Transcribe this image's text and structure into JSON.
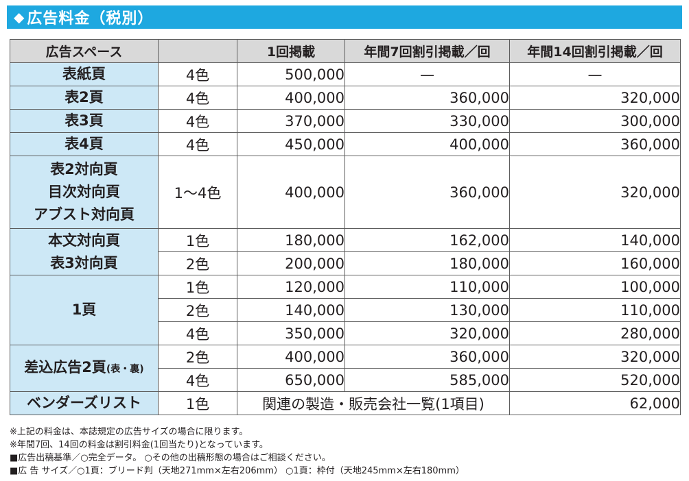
{
  "header": {
    "marker": "◆",
    "title": "広告料金（税別）"
  },
  "table": {
    "headers": [
      "広告スペース",
      "",
      "1回掲載",
      "年間7回割引掲載／回",
      "年間14回割引掲載／回"
    ],
    "groups": [
      {
        "label_lines": [
          "表紙頁"
        ],
        "rows": [
          {
            "color": "4色",
            "once": "500,000",
            "seven": "—",
            "fourteen": "—"
          }
        ]
      },
      {
        "label_lines": [
          "表2頁"
        ],
        "rows": [
          {
            "color": "4色",
            "once": "400,000",
            "seven": "360,000",
            "fourteen": "320,000"
          }
        ]
      },
      {
        "label_lines": [
          "表3頁"
        ],
        "rows": [
          {
            "color": "4色",
            "once": "370,000",
            "seven": "330,000",
            "fourteen": "300,000"
          }
        ]
      },
      {
        "label_lines": [
          "表4頁"
        ],
        "rows": [
          {
            "color": "4色",
            "once": "450,000",
            "seven": "400,000",
            "fourteen": "360,000"
          }
        ]
      },
      {
        "label_lines": [
          "表2対向頁",
          "目次対向頁",
          "アブスト対向頁"
        ],
        "rows": [
          {
            "color": "1〜4色",
            "once": "400,000",
            "seven": "360,000",
            "fourteen": "320,000"
          }
        ]
      },
      {
        "label_lines": [
          "本文対向頁",
          "表3対向頁"
        ],
        "rows": [
          {
            "color": "1色",
            "once": "180,000",
            "seven": "162,000",
            "fourteen": "140,000"
          },
          {
            "color": "2色",
            "once": "200,000",
            "seven": "180,000",
            "fourteen": "160,000"
          }
        ]
      },
      {
        "label_lines": [
          "1頁"
        ],
        "rows": [
          {
            "color": "1色",
            "once": "120,000",
            "seven": "110,000",
            "fourteen": "100,000"
          },
          {
            "color": "2色",
            "once": "140,000",
            "seven": "130,000",
            "fourteen": "110,000"
          },
          {
            "color": "4色",
            "once": "350,000",
            "seven": "320,000",
            "fourteen": "280,000"
          }
        ]
      },
      {
        "label_lines": [
          "差込広告2頁"
        ],
        "label_suffix": "(表・裏)",
        "rows": [
          {
            "color": "2色",
            "once": "400,000",
            "seven": "360,000",
            "fourteen": "320,000"
          },
          {
            "color": "4色",
            "once": "650,000",
            "seven": "585,000",
            "fourteen": "520,000"
          }
        ]
      }
    ],
    "vendor": {
      "label": "ベンダーズリスト",
      "color": "1色",
      "merged": "関連の製造・販売会社一覧(1項目)",
      "price": "62,000"
    }
  },
  "notes": [
    "※上記の料金は、本誌規定の広告サイズの場合に限ります。",
    "※年間7回、14回の料金は割引料金(1回当たり)となっています。",
    "■広告出稿基準／○完全データ。 ○その他の出稿形態の場合はご相談ください。",
    "■広 告 サイズ／○1頁：ブリード判（天地271mm×左右206mm） ○1頁：枠付（天地245mm×左右180mm）"
  ],
  "colors": {
    "header_bg": "#1ea8e0",
    "label_bg": "#cde8f6",
    "head_bg": "#d9d9d9",
    "border": "#5c5c5c"
  }
}
